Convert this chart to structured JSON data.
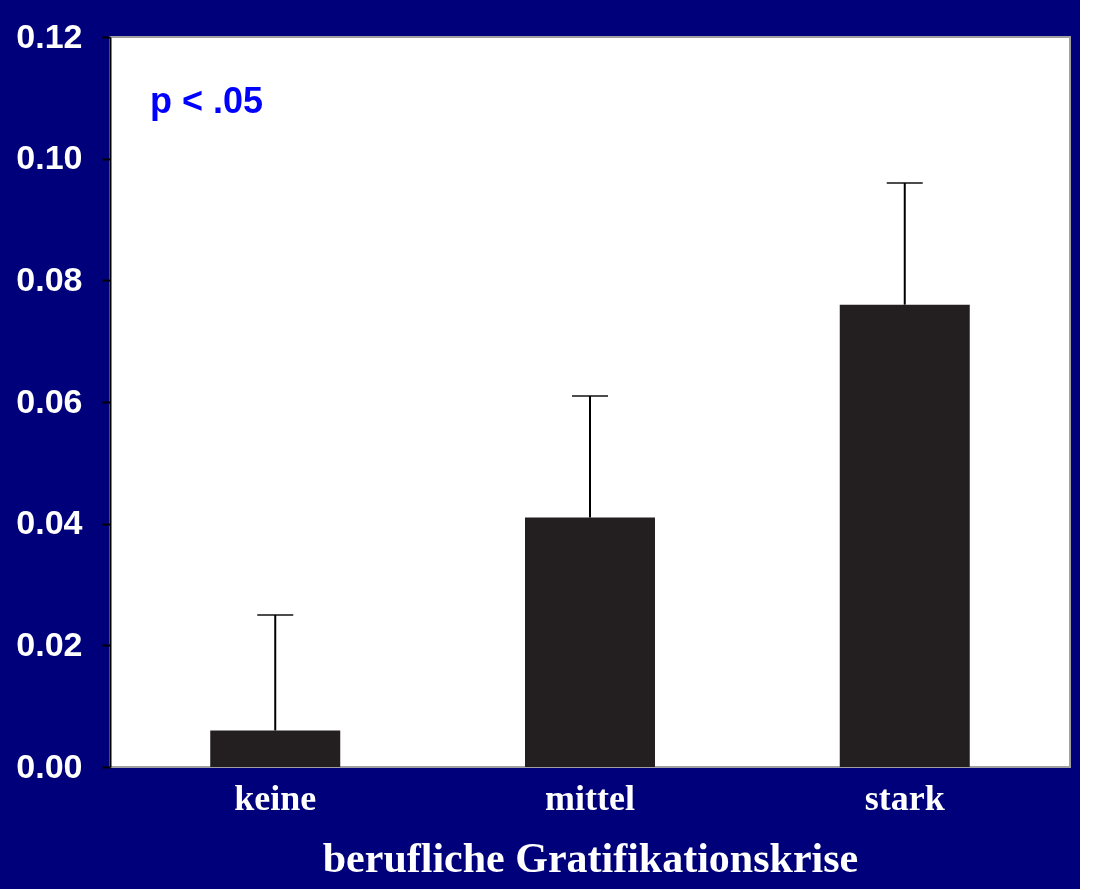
{
  "chart_data": {
    "type": "bar",
    "xlabel": "berufliche Gratifikationskrise",
    "categories": [
      "keine",
      "mittel",
      "stark"
    ],
    "values": [
      0.006,
      0.041,
      0.076
    ],
    "errors": [
      [
        0.006,
        0.025
      ],
      [
        0.041,
        0.061
      ],
      [
        0.076,
        0.096
      ]
    ],
    "color": "#231f20",
    "ylim": [
      0,
      0.12
    ],
    "yticks": [
      {
        "value": 0,
        "label": "0.00"
      },
      {
        "value": 0.02,
        "label": "0.02"
      },
      {
        "value": 0.04,
        "label": "0.04"
      },
      {
        "value": 0.06,
        "label": "0.06"
      },
      {
        "value": 0.08,
        "label": "0.08"
      },
      {
        "value": 0.1,
        "label": "0.10"
      },
      {
        "value": 0.12,
        "label": "0.12"
      }
    ],
    "grid": false,
    "annotations": [
      "p < .05"
    ]
  }
}
